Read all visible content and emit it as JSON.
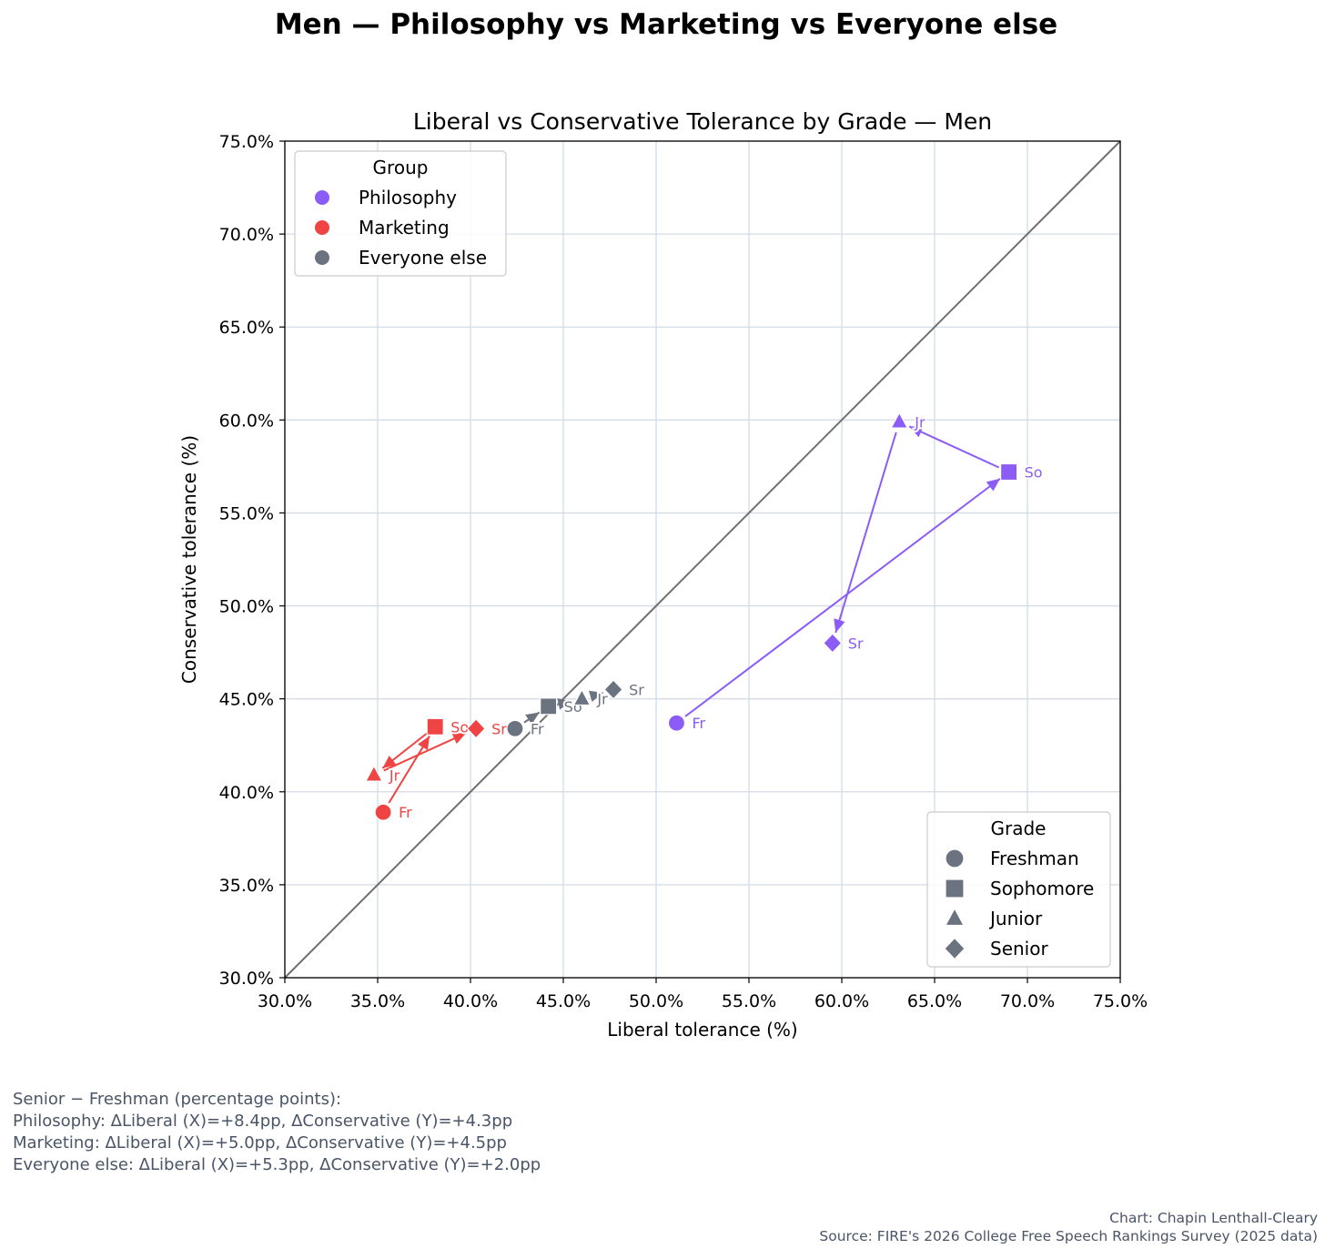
{
  "suptitle": "Men — Philosophy vs Marketing vs Everyone else",
  "chart_data": {
    "type": "scatter",
    "title": "Liberal vs Conservative Tolerance by Grade — Men",
    "xlabel": "Liberal tolerance (%)",
    "ylabel": "Conservative tolerance (%)",
    "xlim": [
      30,
      75
    ],
    "ylim": [
      30,
      75
    ],
    "ticks": [
      30,
      35,
      40,
      45,
      50,
      55,
      60,
      65,
      70,
      75
    ],
    "tick_labels": [
      "30.0%",
      "35.0%",
      "40.0%",
      "45.0%",
      "50.0%",
      "55.0%",
      "60.0%",
      "65.0%",
      "70.0%",
      "75.0%"
    ],
    "grid": true,
    "reference_line": "y = x",
    "grade_order": [
      "Fr",
      "So",
      "Jr",
      "Sr"
    ],
    "series": [
      {
        "name": "Philosophy",
        "color": "#8b5cf6",
        "points": [
          {
            "grade": "Fr",
            "x": 51.1,
            "y": 43.7
          },
          {
            "grade": "So",
            "x": 69.0,
            "y": 57.2
          },
          {
            "grade": "Jr",
            "x": 63.1,
            "y": 59.9
          },
          {
            "grade": "Sr",
            "x": 59.5,
            "y": 48.0
          }
        ]
      },
      {
        "name": "Marketing",
        "color": "#ef4444",
        "points": [
          {
            "grade": "Fr",
            "x": 35.3,
            "y": 38.9
          },
          {
            "grade": "So",
            "x": 38.1,
            "y": 43.5
          },
          {
            "grade": "Jr",
            "x": 34.8,
            "y": 40.9
          },
          {
            "grade": "Sr",
            "x": 40.3,
            "y": 43.4
          }
        ]
      },
      {
        "name": "Everyone else",
        "color": "#6b7280",
        "points": [
          {
            "grade": "Fr",
            "x": 42.4,
            "y": 43.4
          },
          {
            "grade": "So",
            "x": 44.2,
            "y": 44.6
          },
          {
            "grade": "Jr",
            "x": 46.0,
            "y": 45.0
          },
          {
            "grade": "Sr",
            "x": 47.7,
            "y": 45.5
          }
        ]
      }
    ],
    "group_legend": {
      "title": "Group",
      "position": "top-left",
      "entries": [
        "Philosophy",
        "Marketing",
        "Everyone else"
      ]
    },
    "grade_legend": {
      "title": "Grade",
      "position": "bottom-right",
      "color": "#6b7280",
      "entries": [
        {
          "label": "Freshman",
          "marker": "circle"
        },
        {
          "label": "Sophomore",
          "marker": "square"
        },
        {
          "label": "Junior",
          "marker": "triangle"
        },
        {
          "label": "Senior",
          "marker": "diamond"
        }
      ]
    }
  },
  "footnote": {
    "heading": "Senior − Freshman (percentage points):",
    "lines": [
      "Philosophy: ΔLiberal (X)=+8.4pp, ΔConservative (Y)=+4.3pp",
      "Marketing: ΔLiberal (X)=+5.0pp, ΔConservative (Y)=+4.5pp",
      "Everyone else: ΔLiberal (X)=+5.3pp, ΔConservative (Y)=+2.0pp"
    ]
  },
  "credit": {
    "author": "Chart: Chapin Lenthall-Cleary",
    "source": "Source: FIRE's 2026 College Free Speech Rankings Survey (2025 data)"
  }
}
